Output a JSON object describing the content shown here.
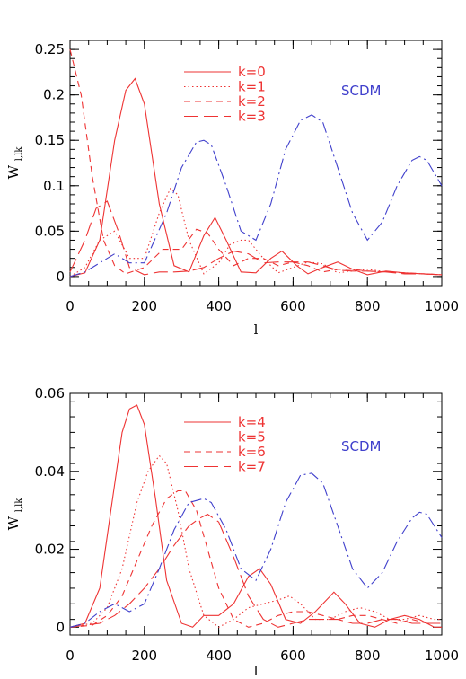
{
  "chart_data": [
    {
      "type": "line",
      "xlabel": "l",
      "ylabel": "W",
      "ylabel_sub": "l,lk",
      "xlim": [
        0,
        1000
      ],
      "ylim": [
        -0.01,
        0.26
      ],
      "xticks": [
        "0",
        "200",
        "400",
        "600",
        "800",
        "1000"
      ],
      "yticks": [
        "0",
        "0.05",
        "0.1",
        "0.15",
        "0.2",
        "0.25"
      ],
      "annotation": {
        "text": "SCDM",
        "color": "#4040cc"
      },
      "series": [
        {
          "name": "k=0",
          "color": "#ee3333",
          "dash": "solid",
          "x": [
            0,
            40,
            80,
            120,
            150,
            175,
            200,
            240,
            280,
            320,
            360,
            390,
            420,
            460,
            500,
            540,
            570,
            610,
            640,
            680,
            720,
            760,
            800,
            850,
            900,
            950,
            1000
          ],
          "values": [
            0,
            0.004,
            0.04,
            0.15,
            0.205,
            0.218,
            0.19,
            0.08,
            0.012,
            0.005,
            0.045,
            0.065,
            0.04,
            0.005,
            0.004,
            0.02,
            0.028,
            0.012,
            0.003,
            0.01,
            0.016,
            0.008,
            0.002,
            0.006,
            0.004,
            0.003,
            0.002
          ]
        },
        {
          "name": "k=1",
          "color": "#ee3333",
          "dash": "dot",
          "x": [
            0,
            40,
            80,
            120,
            160,
            200,
            240,
            270,
            290,
            320,
            360,
            400,
            430,
            460,
            480,
            520,
            560,
            600,
            640,
            680,
            720,
            760,
            800,
            850,
            900,
            950,
            1000
          ],
          "values": [
            0,
            0.01,
            0.04,
            0.05,
            0.02,
            0.02,
            0.07,
            0.097,
            0.09,
            0.04,
            0.003,
            0.015,
            0.035,
            0.04,
            0.04,
            0.02,
            0.004,
            0.01,
            0.016,
            0.014,
            0.004,
            0.006,
            0.008,
            0.005,
            0.004,
            0.003,
            0.002
          ]
        },
        {
          "name": "k=2",
          "color": "#ee3333",
          "dash": "dash",
          "x": [
            0,
            30,
            60,
            90,
            120,
            150,
            200,
            250,
            300,
            340,
            370,
            400,
            440,
            480,
            520,
            560,
            600,
            640,
            680,
            720,
            760,
            800,
            850,
            900,
            950,
            1000
          ],
          "values": [
            0.25,
            0.2,
            0.11,
            0.04,
            0.012,
            0.003,
            0.01,
            0.03,
            0.03,
            0.052,
            0.048,
            0.03,
            0.012,
            0.02,
            0.02,
            0.012,
            0.016,
            0.012,
            0.005,
            0.008,
            0.008,
            0.006,
            0.005,
            0.004,
            0.003,
            0.002
          ]
        },
        {
          "name": "k=3",
          "color": "#ee3333",
          "dash": "longdash",
          "x": [
            0,
            40,
            70,
            100,
            130,
            160,
            200,
            240,
            280,
            320,
            360,
            400,
            440,
            480,
            520,
            560,
            600,
            640,
            680,
            720,
            760,
            800,
            850,
            900,
            950,
            1000
          ],
          "values": [
            0.005,
            0.04,
            0.075,
            0.083,
            0.05,
            0.01,
            0.002,
            0.005,
            0.005,
            0.006,
            0.01,
            0.02,
            0.028,
            0.025,
            0.015,
            0.016,
            0.016,
            0.016,
            0.012,
            0.007,
            0.006,
            0.006,
            0.005,
            0.003,
            0.003,
            0.002
          ]
        },
        {
          "name": "",
          "color": "#4040cc",
          "dash": "dashdot",
          "x": [
            0,
            40,
            80,
            120,
            160,
            200,
            260,
            300,
            340,
            360,
            380,
            420,
            460,
            500,
            540,
            580,
            620,
            650,
            680,
            720,
            760,
            800,
            840,
            880,
            920,
            940,
            960,
            1000
          ],
          "values": [
            0,
            0.005,
            0.015,
            0.025,
            0.015,
            0.015,
            0.07,
            0.12,
            0.148,
            0.15,
            0.145,
            0.1,
            0.05,
            0.04,
            0.08,
            0.14,
            0.172,
            0.178,
            0.17,
            0.12,
            0.07,
            0.04,
            0.06,
            0.1,
            0.128,
            0.132,
            0.128,
            0.1
          ]
        }
      ]
    },
    {
      "type": "line",
      "xlabel": "l",
      "ylabel": "W",
      "ylabel_sub": "l,lk",
      "xlim": [
        0,
        1000
      ],
      "ylim": [
        -0.002,
        0.06
      ],
      "xticks": [
        "0",
        "200",
        "400",
        "600",
        "800",
        "1000"
      ],
      "yticks": [
        "0",
        "0.02",
        "0.04",
        "0.06"
      ],
      "annotation": {
        "text": "SCDM",
        "color": "#4040cc"
      },
      "series": [
        {
          "name": "k=4",
          "color": "#ee3333",
          "dash": "solid",
          "x": [
            0,
            40,
            80,
            110,
            140,
            160,
            180,
            200,
            230,
            260,
            300,
            330,
            360,
            400,
            440,
            480,
            510,
            540,
            580,
            620,
            660,
            700,
            710,
            740,
            780,
            820,
            860,
            900,
            940,
            980,
            1000
          ],
          "values": [
            0,
            0.001,
            0.01,
            0.03,
            0.05,
            0.056,
            0.057,
            0.052,
            0.033,
            0.012,
            0.001,
            0.0,
            0.003,
            0.003,
            0.006,
            0.013,
            0.015,
            0.011,
            0.002,
            0.001,
            0.004,
            0.008,
            0.009,
            0.006,
            0.001,
            0.0,
            0.002,
            0.003,
            0.002,
            0.0,
            0.0
          ]
        },
        {
          "name": "k=5",
          "color": "#ee3333",
          "dash": "dot",
          "x": [
            0,
            60,
            100,
            140,
            180,
            210,
            240,
            260,
            290,
            320,
            360,
            400,
            440,
            480,
            520,
            560,
            590,
            620,
            660,
            700,
            740,
            780,
            820,
            860,
            900,
            940,
            980,
            1000
          ],
          "values": [
            0,
            0.001,
            0.005,
            0.015,
            0.032,
            0.04,
            0.044,
            0.042,
            0.03,
            0.015,
            0.003,
            0.0,
            0.002,
            0.005,
            0.006,
            0.007,
            0.008,
            0.006,
            0.002,
            0.002,
            0.004,
            0.005,
            0.004,
            0.002,
            0.002,
            0.003,
            0.002,
            0.002
          ]
        },
        {
          "name": "k=6",
          "color": "#ee3333",
          "dash": "dash",
          "x": [
            0,
            60,
            100,
            140,
            180,
            220,
            260,
            290,
            310,
            340,
            370,
            400,
            440,
            480,
            520,
            560,
            600,
            640,
            680,
            720,
            760,
            800,
            840,
            880,
            920,
            960,
            1000
          ],
          "values": [
            0,
            0.0005,
            0.003,
            0.008,
            0.017,
            0.026,
            0.033,
            0.035,
            0.035,
            0.03,
            0.02,
            0.01,
            0.002,
            0.0,
            0.001,
            0.003,
            0.004,
            0.004,
            0.003,
            0.002,
            0.003,
            0.003,
            0.002,
            0.001,
            0.002,
            0.001,
            0.001
          ]
        },
        {
          "name": "k=7",
          "color": "#ee3333",
          "dash": "longdash",
          "x": [
            0,
            80,
            120,
            160,
            200,
            240,
            280,
            320,
            350,
            370,
            400,
            440,
            480,
            520,
            560,
            600,
            640,
            680,
            720,
            760,
            800,
            840,
            880,
            920,
            960,
            1000
          ],
          "values": [
            0,
            0.001,
            0.003,
            0.006,
            0.01,
            0.015,
            0.021,
            0.026,
            0.028,
            0.029,
            0.027,
            0.018,
            0.008,
            0.002,
            0.0,
            0.001,
            0.002,
            0.002,
            0.002,
            0.001,
            0.001,
            0.002,
            0.002,
            0.001,
            0.001,
            0.001
          ]
        },
        {
          "name": "",
          "color": "#4040cc",
          "dash": "dashdot",
          "x": [
            0,
            40,
            80,
            120,
            160,
            200,
            240,
            280,
            320,
            360,
            380,
            420,
            460,
            500,
            540,
            580,
            620,
            650,
            680,
            720,
            760,
            800,
            840,
            880,
            920,
            940,
            960,
            1000
          ],
          "values": [
            0,
            0.001,
            0.004,
            0.006,
            0.004,
            0.006,
            0.015,
            0.025,
            0.032,
            0.033,
            0.032,
            0.025,
            0.015,
            0.012,
            0.02,
            0.032,
            0.039,
            0.0395,
            0.037,
            0.026,
            0.015,
            0.01,
            0.014,
            0.022,
            0.028,
            0.0295,
            0.029,
            0.023
          ]
        }
      ]
    }
  ]
}
